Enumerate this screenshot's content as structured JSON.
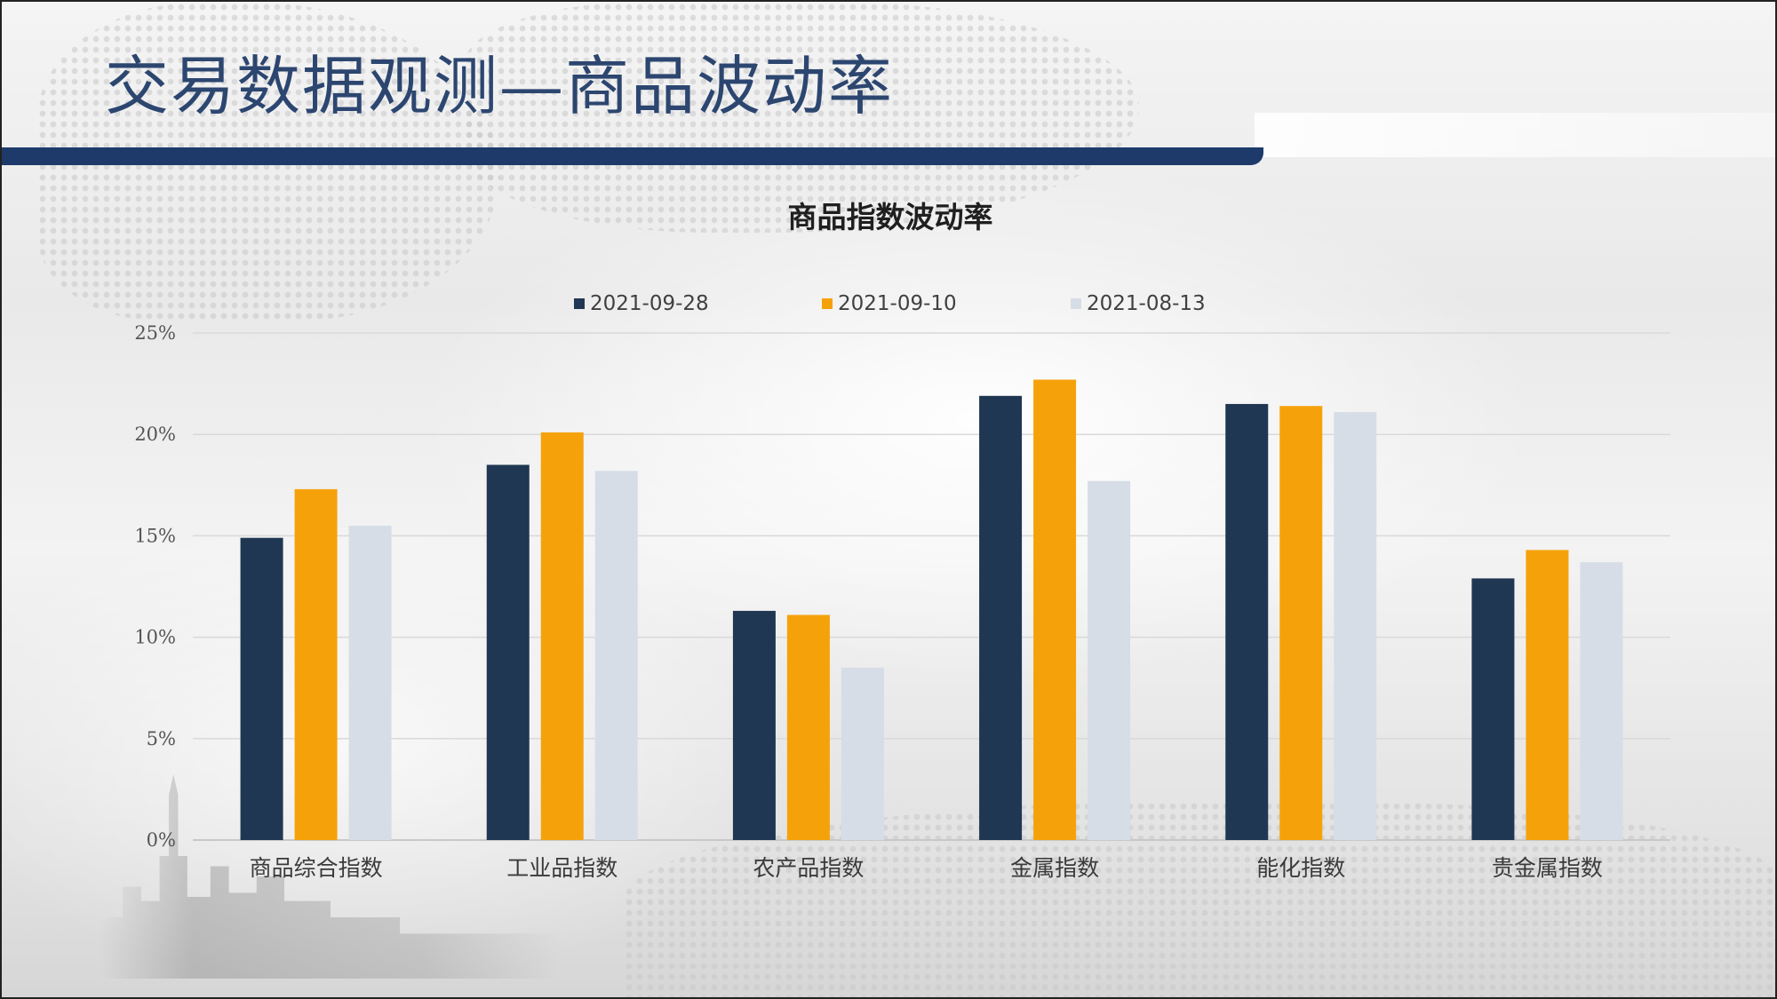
{
  "slide": {
    "title": "交易数据观测—商品波动率",
    "colors": {
      "title_text": "#2c4670",
      "title_bar": "#1d3a6b"
    }
  },
  "chart_data": {
    "type": "bar",
    "title": "商品指数波动率",
    "xlabel": "",
    "ylabel": "",
    "categories": [
      "商品综合指数",
      "工业品指数",
      "农产品指数",
      "金属指数",
      "能化指数",
      "贵金属指数"
    ],
    "series": [
      {
        "name": "2021-09-28",
        "color": "#1f3752",
        "values": [
          14.9,
          18.5,
          11.3,
          21.9,
          21.5,
          12.9
        ]
      },
      {
        "name": "2021-09-10",
        "color": "#f5a20a",
        "values": [
          17.3,
          20.1,
          11.1,
          22.7,
          21.4,
          14.3
        ]
      },
      {
        "name": "2021-08-13",
        "color": "#d6dde6",
        "values": [
          15.5,
          18.2,
          8.5,
          17.7,
          21.1,
          13.7
        ]
      }
    ],
    "y_ticks": [
      "0%",
      "5%",
      "10%",
      "15%",
      "20%",
      "25%"
    ],
    "ylim": [
      0,
      25
    ],
    "grid": true,
    "legend_position": "top"
  }
}
